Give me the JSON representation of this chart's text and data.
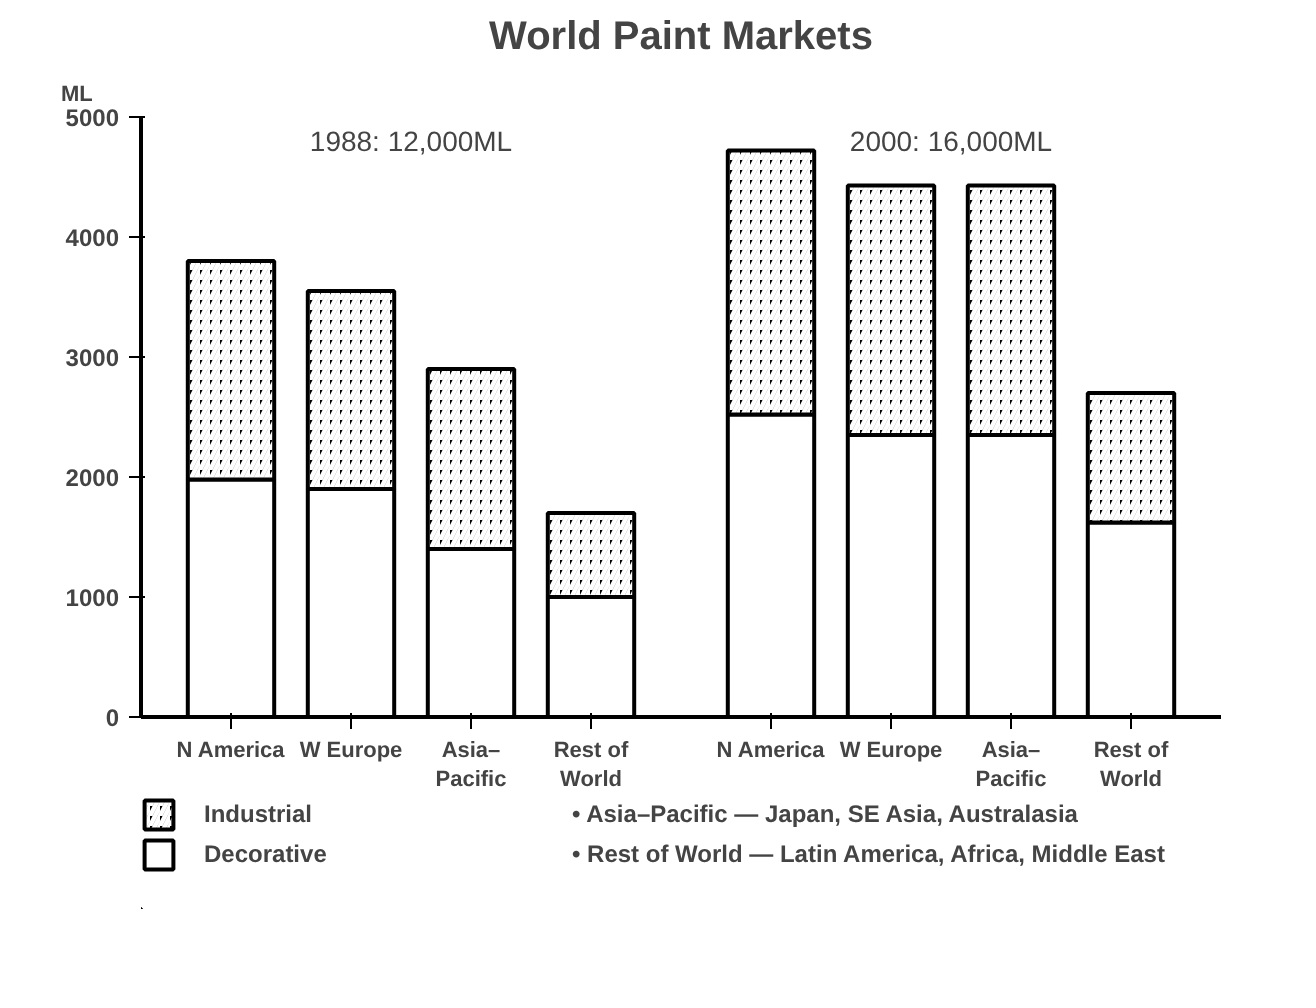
{
  "chart_data": {
    "type": "bar",
    "title": "World Paint Markets",
    "ylabel": "ML",
    "categories": [
      "N America",
      "W Europe",
      "Asia–\nPacific",
      "Rest of\nWorld",
      "N America",
      "W Europe",
      "Asia–\nPacific",
      "Rest of\nWorld"
    ],
    "stacked": true,
    "series": [
      {
        "name": "Decorative",
        "color": "#ffffff",
        "values": [
          1980,
          1900,
          1400,
          1000,
          2520,
          2350,
          2350,
          1620
        ]
      },
      {
        "name": "Industrial",
        "color": "#000000",
        "values": [
          1820,
          1650,
          1500,
          700,
          2200,
          2080,
          2080,
          1080
        ]
      }
    ],
    "ylim": [
      0,
      5000
    ],
    "yticks": [
      0,
      1000,
      2000,
      3000,
      4000,
      5000
    ],
    "grid": false,
    "legend": "bottom left",
    "annotations": [
      "1988: 12,000ML",
      "2000: 16,000ML",
      "• Asia–Pacific — Japan, SE Asia, Australasia",
      "• Rest of World — Latin America, Africa, Middle East"
    ]
  }
}
